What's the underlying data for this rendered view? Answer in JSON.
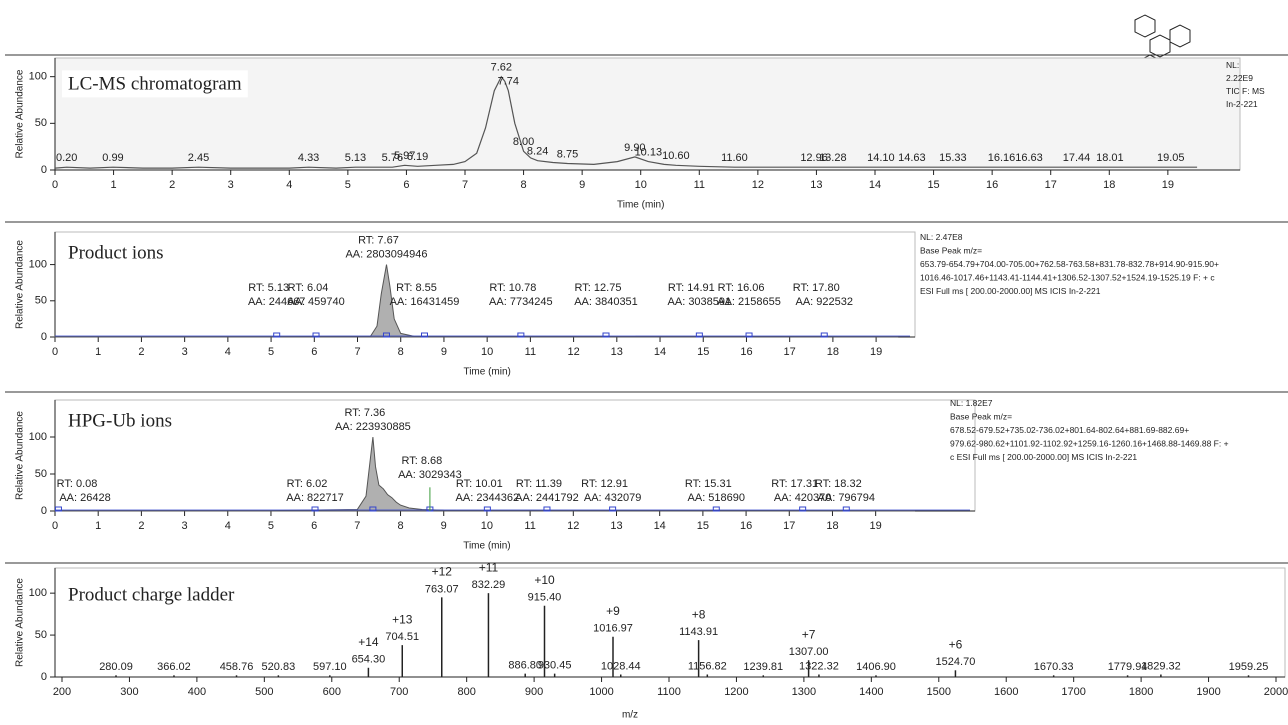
{
  "chart_data": [
    {
      "type": "line",
      "title": "LC-MS chromatogram",
      "x_label": "Time (min)",
      "y_label": "Relative Abundance",
      "xlim": [
        0,
        21
      ],
      "ylim": [
        0,
        120
      ],
      "xticks": [
        0,
        1,
        2,
        3,
        4,
        5,
        6,
        7,
        8,
        9,
        10,
        11,
        12,
        13,
        14,
        15,
        16,
        17,
        18,
        19
      ],
      "yticks": [
        0,
        50,
        100
      ],
      "color": "#555555",
      "x": [
        0,
        0.2,
        0.6,
        0.99,
        1.5,
        2.0,
        2.45,
        3.0,
        3.5,
        4.0,
        4.33,
        4.8,
        5.13,
        5.5,
        5.76,
        5.97,
        6.19,
        6.5,
        6.8,
        7.0,
        7.2,
        7.35,
        7.5,
        7.62,
        7.68,
        7.74,
        7.85,
        8.0,
        8.12,
        8.24,
        8.5,
        8.75,
        9.2,
        9.6,
        9.9,
        10.13,
        10.4,
        10.6,
        11.0,
        11.6,
        12.0,
        12.5,
        12.96,
        13.28,
        13.6,
        14.1,
        14.63,
        15.33,
        15.8,
        16.16,
        16.63,
        17.0,
        17.44,
        18.01,
        18.5,
        19.05,
        19.5
      ],
      "values": [
        2,
        3,
        2,
        3,
        2,
        2,
        3,
        2,
        2,
        2,
        3,
        2,
        3,
        3,
        3,
        5,
        4,
        5,
        6,
        9,
        18,
        45,
        85,
        100,
        95,
        85,
        50,
        20,
        13,
        10,
        8,
        7,
        6,
        9,
        14,
        9,
        6,
        5,
        4,
        3,
        3,
        3,
        3,
        3,
        3,
        3,
        3,
        3,
        3,
        3,
        3,
        3,
        3,
        3,
        3,
        3,
        3
      ],
      "peaks": {
        "x": [
          0.2,
          0.99,
          2.45,
          4.33,
          5.13,
          5.76,
          5.97,
          6.19,
          7.62,
          7.74,
          8.0,
          8.24,
          8.75,
          9.9,
          10.13,
          10.6,
          11.6,
          12.96,
          13.28,
          14.1,
          14.63,
          15.33,
          16.16,
          16.63,
          17.44,
          18.01,
          19.05
        ],
        "values": [
          3,
          3,
          3,
          3,
          3,
          3,
          5,
          4,
          100,
          85,
          20,
          10,
          7,
          14,
          9,
          5,
          3,
          3,
          3,
          3,
          3,
          3,
          3,
          3,
          3,
          3,
          3
        ],
        "labels": [
          "0.20",
          "0.99",
          "2.45",
          "4.33",
          "5.13",
          "5.76",
          "5.97",
          "6.19",
          "7.62",
          "7.74",
          "8.00",
          "8.24",
          "8.75",
          "9.90",
          "10.13",
          "10.60",
          "11.60",
          "12.96",
          "13.28",
          "14.10",
          "14.63",
          "15.33",
          "16.16",
          "16.63",
          "17.44",
          "18.01",
          "19.05"
        ]
      },
      "info": [
        "NL:",
        "2.22E9",
        "TIC F:  MS",
        "In-2-221"
      ]
    },
    {
      "type": "area",
      "title": "Product ions",
      "x_label": "Time (min)",
      "y_label": "Relative Abundance",
      "xlim": [
        0,
        19.9
      ],
      "ylim": [
        0,
        145
      ],
      "xticks": [
        0,
        1,
        2,
        3,
        4,
        5,
        6,
        7,
        8,
        9,
        10,
        11,
        12,
        13,
        14,
        15,
        16,
        17,
        18,
        19
      ],
      "yticks": [
        0,
        50,
        100
      ],
      "color": "#555555",
      "fill": "#b0b0b0",
      "x": [
        0,
        5,
        7.3,
        7.45,
        7.55,
        7.67,
        7.75,
        7.85,
        8.0,
        8.3,
        19.5
      ],
      "values": [
        0.5,
        0.5,
        1,
        15,
        60,
        100,
        70,
        25,
        5,
        1,
        0.5
      ],
      "peaks": {
        "x": [
          5.13,
          6.04,
          7.67,
          8.55,
          10.78,
          12.75,
          14.91,
          16.06,
          17.8
        ],
        "values": [
          1,
          1,
          100,
          1,
          1,
          1,
          1,
          1,
          1
        ],
        "rt_labels": [
          "RT: 5.13",
          "RT: 6.04",
          "RT: 7.67",
          "RT: 8.55",
          "RT: 10.78",
          "RT: 12.75",
          "RT: 14.91",
          "RT: 16.06",
          "RT: 17.80"
        ],
        "aa_labels": [
          "AA: 244667",
          "AA: 459740",
          "AA: 2803094946",
          "AA: 16431459",
          "AA: 7734245",
          "AA: 3840351",
          "AA: 3038591",
          "AA: 2158655",
          "AA: 922532"
        ]
      },
      "info": [
        "NL: 2.47E8",
        "Base Peak m/z=",
        "653.79-654.79+704.00-705.00+762.58-763.58+831.78-832.78+914.90-915.90+",
        "1016.46-1017.46+1143.41-1144.41+1306.52-1307.52+1524.19-1525.19 F: + c",
        "ESI Full ms [ 200.00-2000.00]  MS  ICIS In-2-221"
      ]
    },
    {
      "type": "area",
      "title": "HPG-Ub ions",
      "x_label": "Time (min)",
      "y_label": "Relative Abundance",
      "xlim": [
        0,
        21.3
      ],
      "ylim": [
        0,
        150
      ],
      "xticks": [
        0,
        1,
        2,
        3,
        4,
        5,
        6,
        7,
        8,
        9,
        10,
        11,
        12,
        13,
        14,
        15,
        16,
        17,
        18,
        19
      ],
      "yticks": [
        0,
        50,
        100
      ],
      "color": "#555555",
      "fill": "#b0b0b0",
      "x": [
        0,
        5,
        7.0,
        7.2,
        7.3,
        7.36,
        7.42,
        7.5,
        7.6,
        7.7,
        7.8,
        7.9,
        8.0,
        8.2,
        8.5,
        9,
        19.9
      ],
      "values": [
        0.5,
        0.5,
        2,
        20,
        70,
        100,
        60,
        35,
        30,
        22,
        18,
        12,
        8,
        4,
        2,
        1,
        0.5
      ],
      "peaks": {
        "x": [
          0.08,
          6.02,
          7.36,
          8.68,
          10.01,
          11.39,
          12.91,
          15.31,
          17.31,
          18.32
        ],
        "values": [
          1,
          1,
          100,
          32,
          1,
          1,
          1,
          1,
          1,
          1
        ],
        "rt_labels": [
          "RT: 0.08",
          "RT: 6.02",
          "RT: 7.36",
          "RT: 8.68",
          "RT: 10.01",
          "RT: 11.39",
          "RT: 12.91",
          "RT: 15.31",
          "RT: 17.31",
          "RT: 18.32"
        ],
        "aa_labels": [
          "AA: 26428",
          "AA: 822717",
          "AA: 223930885",
          "AA: 3029343",
          "AA: 2344362",
          "AA: 2441792",
          "AA: 432079",
          "AA: 518690",
          "AA: 420370",
          "AA: 796794"
        ]
      },
      "info": [
        "NL: 1.82E7",
        "Base Peak m/z=",
        "678.52-679.52+735.02-736.02+801.64-802.64+881.69-882.69+",
        "979.62-980.62+1101.92-1102.92+1259.16-1260.16+1468.88-1469.88 F: +",
        "c ESI Full ms [ 200.00-2000.00]  MS  ICIS In-2-221"
      ]
    },
    {
      "type": "spectrum",
      "title": "Product charge ladder",
      "x_label": "m/z",
      "y_label": "Relative Abundance",
      "xlim": [
        200,
        2000
      ],
      "ylim": [
        0,
        130
      ],
      "xticks": [
        200,
        300,
        400,
        500,
        600,
        700,
        800,
        900,
        1000,
        1100,
        1200,
        1300,
        1400,
        1500,
        1600,
        1700,
        1800,
        1900,
        2000
      ],
      "yticks": [
        0,
        50,
        100
      ],
      "color": "#222222",
      "x": [
        280.09,
        366.02,
        458.76,
        520.83,
        597.1,
        654.3,
        704.51,
        763.07,
        832.29,
        886.8,
        915.4,
        930.45,
        1016.97,
        1028.44,
        1143.91,
        1156.82,
        1239.81,
        1307,
        1322.32,
        1406.9,
        1524.7,
        1670.33,
        1779.94,
        1829.32,
        1959.25
      ],
      "x_labels": [
        "280.09",
        "366.02",
        "458.76",
        "520.83",
        "597.10",
        "654.30",
        "704.51",
        "763.07",
        "832.29",
        "886.80",
        "915.40",
        "930.45",
        "1016.97",
        "1028.44",
        "1143.91",
        "1156.82",
        "1239.81",
        "1307.00",
        "1322.32",
        "1406.90",
        "1524.70",
        "1670.33",
        "1779.94",
        "1829.32",
        "1959.25"
      ],
      "values": [
        2,
        2,
        2,
        2,
        2,
        11,
        38,
        95,
        100,
        4,
        85,
        4,
        48,
        3,
        44,
        3,
        2,
        20,
        3,
        2,
        8,
        2,
        2,
        3,
        2
      ],
      "charge_labels": [
        null,
        null,
        null,
        null,
        null,
        "+14",
        "+13",
        "+12",
        "+11",
        null,
        "+10",
        null,
        "+9",
        null,
        "+8",
        null,
        null,
        "+7",
        null,
        null,
        "+6",
        null,
        null,
        null,
        null
      ]
    }
  ]
}
